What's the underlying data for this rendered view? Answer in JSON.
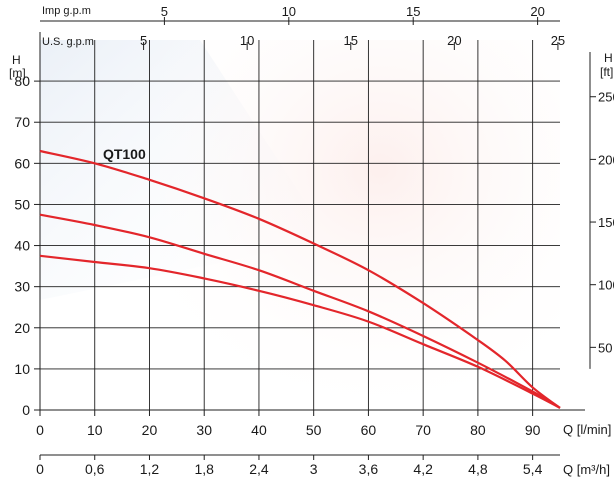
{
  "chart_data": {
    "type": "line",
    "model_label": "QT100",
    "x_axis": {
      "label": "Q [l/min]",
      "range": [
        0,
        95
      ],
      "ticks": [
        0,
        10,
        20,
        30,
        40,
        50,
        60,
        70,
        80,
        90
      ]
    },
    "x_axis_secondary": {
      "label": "Q [m³/h]",
      "range": [
        0,
        5.7
      ],
      "ticks": [
        "0",
        "0,6",
        "1,2",
        "1,8",
        "2,4",
        "3",
        "3,6",
        "4,2",
        "4,8",
        "5,4"
      ]
    },
    "x_axis_top_us": {
      "label": "U.S. g.p.m",
      "range": [
        0,
        25.1
      ],
      "ticks": [
        "5",
        "10",
        "15",
        "20",
        "25"
      ]
    },
    "x_axis_top_imp": {
      "label": "Imp g.p.m",
      "range": [
        0,
        20.9
      ],
      "ticks": [
        "5",
        "10",
        "15",
        "20"
      ]
    },
    "y_axis": {
      "label_top": "H",
      "label_unit": "[m]",
      "range": [
        0,
        90
      ],
      "ticks": [
        0,
        10,
        20,
        30,
        40,
        50,
        60,
        70,
        80
      ]
    },
    "y_axis_right": {
      "label_top": "H",
      "label_unit": "[ft]",
      "ticks": [
        "50",
        "100",
        "150",
        "200",
        "250"
      ]
    },
    "grid": true,
    "series": [
      {
        "x": [
          0,
          10,
          20,
          30,
          40,
          50,
          60,
          70,
          80,
          85,
          90,
          95
        ],
        "y": [
          63,
          60,
          56,
          51.5,
          46.5,
          40.5,
          34,
          26,
          17,
          12,
          5.5,
          0.5
        ]
      },
      {
        "x": [
          0,
          10,
          20,
          30,
          40,
          50,
          60,
          70,
          80,
          90,
          95
        ],
        "y": [
          47.5,
          45,
          42,
          38,
          34,
          29,
          24,
          18,
          11.5,
          4.5,
          0.5
        ]
      },
      {
        "x": [
          0,
          10,
          20,
          30,
          40,
          50,
          60,
          70,
          80,
          90,
          95
        ],
        "y": [
          37.5,
          36,
          34.5,
          32,
          29,
          25.5,
          21.5,
          16,
          10.5,
          4,
          0.5
        ]
      }
    ],
    "colors": {
      "curve": "#e3262b",
      "grid": "#1f1f1f",
      "text": "#1a1a1a"
    }
  }
}
